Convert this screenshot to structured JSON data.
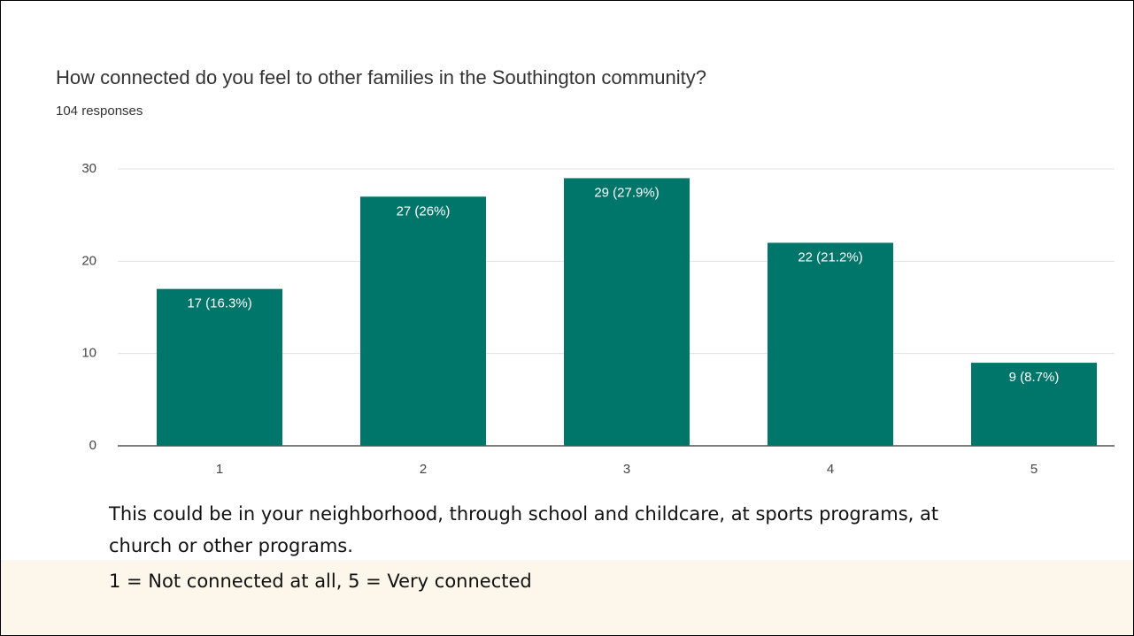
{
  "chart_data": {
    "type": "bar",
    "title": "How connected do you feel to other families in the Southington community?",
    "subtitle": "104 responses",
    "categories": [
      "1",
      "2",
      "3",
      "4",
      "5"
    ],
    "values": [
      17,
      27,
      29,
      22,
      9
    ],
    "value_labels": [
      "17 (16.3%)",
      "27 (26%)",
      "29 (27.9%)",
      "22 (21.2%)",
      "9 (8.7%)"
    ],
    "color": "#00756a",
    "ylim": [
      0,
      30
    ],
    "yticks": [
      0,
      10,
      20,
      30
    ],
    "grid": true,
    "notes": [
      "This could be in your neighborhood, through school and childcare, at sports programs, at church or other programs.",
      "1 = Not connected at all, 5 = Very connected"
    ]
  }
}
